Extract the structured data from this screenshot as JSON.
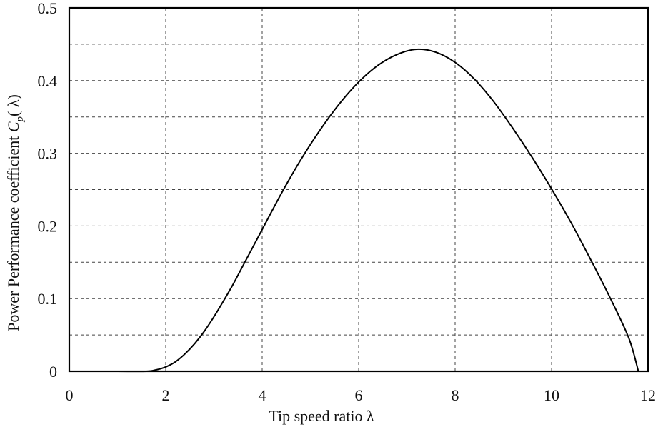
{
  "chart_data": {
    "type": "line",
    "xlabel": "Tip speed ratio  λ",
    "ylabel_text": "Power Performance coefficient  ",
    "ylabel_symbol": "C",
    "ylabel_subscript": "p",
    "ylabel_arg": "( λ)",
    "xlim": [
      0,
      12
    ],
    "ylim": [
      0,
      0.5
    ],
    "x_ticks": [
      0,
      2,
      4,
      6,
      8,
      10,
      12
    ],
    "y_ticks": [
      0,
      0.1,
      0.2,
      0.3,
      0.4,
      0.5
    ],
    "x_tick_labels": [
      "0",
      "2",
      "4",
      "6",
      "8",
      "10",
      "12"
    ],
    "y_tick_labels": [
      "0",
      "0.1",
      "0.2",
      "0.3",
      "0.4",
      "0.5"
    ],
    "grid_x": [
      2,
      4,
      6,
      8,
      10
    ],
    "grid_y": [
      0.05,
      0.1,
      0.15,
      0.2,
      0.25,
      0.3,
      0.35,
      0.4,
      0.45
    ],
    "grid": true,
    "series": [
      {
        "x": [
          0.4,
          1.0,
          1.6,
          1.8,
          2.0,
          2.2,
          2.4,
          2.6,
          2.8,
          3.0,
          3.2,
          3.4,
          3.6,
          3.8,
          4.0,
          4.4,
          4.8,
          5.2,
          5.6,
          6.0,
          6.4,
          6.8,
          7.2,
          7.6,
          8.0,
          8.4,
          8.8,
          9.2,
          9.6,
          10.0,
          10.4,
          10.8,
          11.2,
          11.6,
          11.8
        ],
        "y": [
          0.0,
          0.0,
          0.0,
          0.002,
          0.006,
          0.013,
          0.024,
          0.038,
          0.055,
          0.075,
          0.097,
          0.12,
          0.145,
          0.17,
          0.195,
          0.245,
          0.291,
          0.332,
          0.368,
          0.398,
          0.421,
          0.436,
          0.443,
          0.439,
          0.425,
          0.402,
          0.371,
          0.334,
          0.294,
          0.251,
          0.205,
          0.155,
          0.103,
          0.046,
          0.0
        ]
      }
    ]
  }
}
